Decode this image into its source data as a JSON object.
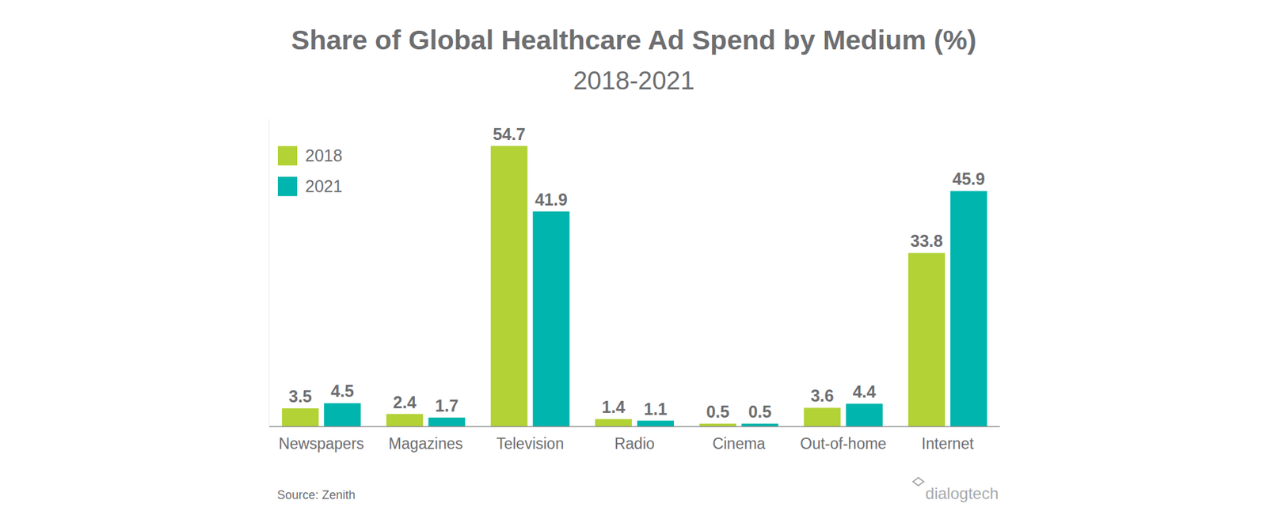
{
  "chart_data": {
    "type": "bar",
    "title": "Share of Global Healthcare Ad Spend by Medium (%)",
    "subtitle": "2018-2021",
    "categories": [
      "Newspapers",
      "Magazines",
      "Television",
      "Radio",
      "Cinema",
      "Out-of-home",
      "Internet"
    ],
    "series": [
      {
        "name": "2018",
        "color": "#b2d235",
        "values": [
          3.5,
          2.4,
          54.7,
          1.4,
          0.5,
          3.6,
          33.8
        ]
      },
      {
        "name": "2021",
        "color": "#00b5ad",
        "values": [
          4.5,
          1.7,
          41.9,
          1.1,
          0.5,
          4.4,
          45.9
        ]
      }
    ],
    "ylim": [
      0,
      60
    ],
    "data_labels": true,
    "tick_labels": "x",
    "legend": "top-left",
    "source": "Source: Zenith",
    "logo_text": "dialogtech"
  }
}
